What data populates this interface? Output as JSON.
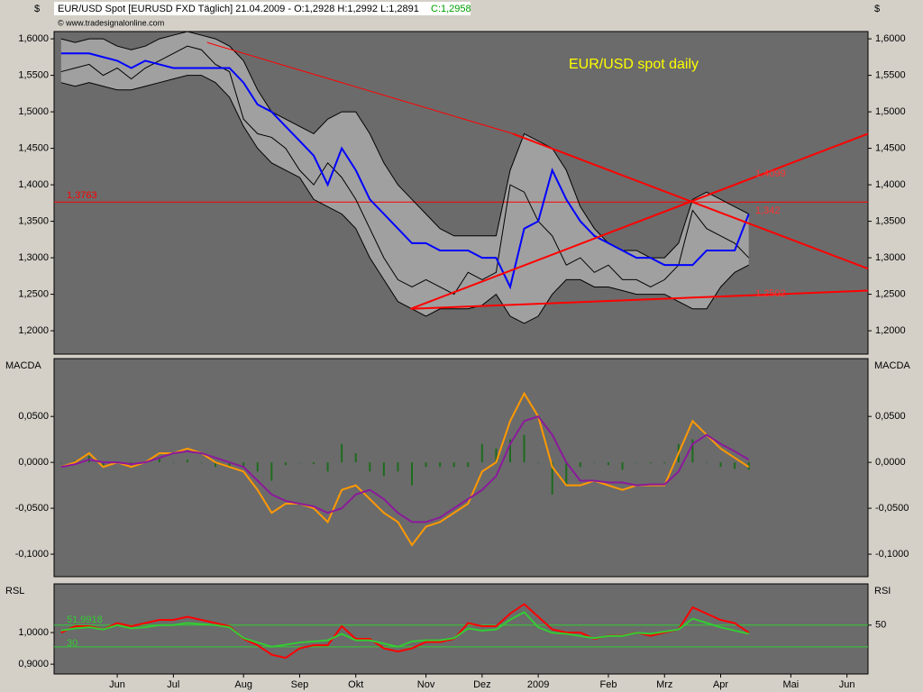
{
  "chart_data": [
    {
      "type": "line",
      "title": "EUR/USD spot daily",
      "header": "EUR/USD Spot [EURUSD FXD  Täglich] 21.04.2009 - O:1,2928 H:1,2992 L:1,2891",
      "close_label": "C:1,2958",
      "source": "© www.tradesignalonline.com",
      "ylabel": "$",
      "ylim": [
        1.168,
        1.61
      ],
      "yticks": [
        {
          "value": 1.6,
          "label": "1,6000"
        },
        {
          "value": 1.55,
          "label": "1,5500"
        },
        {
          "value": 1.5,
          "label": "1,5000"
        },
        {
          "value": 1.45,
          "label": "1,4500"
        },
        {
          "value": 1.4,
          "label": "1,4000"
        },
        {
          "value": 1.35,
          "label": "1,3500"
        },
        {
          "value": 1.3,
          "label": "1,3000"
        },
        {
          "value": 1.25,
          "label": "1,2500"
        },
        {
          "value": 1.2,
          "label": "1,2000"
        }
      ],
      "series": [
        {
          "color": "#000000",
          "values": [
            1.555,
            1.56,
            1.565,
            1.55,
            1.56,
            1.545,
            1.56,
            1.57,
            1.58,
            1.59,
            1.585,
            1.565,
            1.555,
            1.49,
            1.47,
            1.465,
            1.45,
            1.42,
            1.4,
            1.43,
            1.41,
            1.38,
            1.34,
            1.3,
            1.27,
            1.26,
            1.27,
            1.26,
            1.25,
            1.28,
            1.27,
            1.28,
            1.4,
            1.39,
            1.35,
            1.33,
            1.29,
            1.3,
            1.28,
            1.29,
            1.27,
            1.27,
            1.26,
            1.27,
            1.29,
            1.365,
            1.34,
            1.33,
            1.32,
            1.3,
            null,
            null,
            null,
            null,
            null,
            null,
            null,
            null
          ]
        },
        {
          "color": "#000000",
          "values": [
            1.6,
            1.595,
            1.6,
            1.6,
            1.59,
            1.585,
            1.59,
            1.6,
            1.605,
            1.61,
            1.605,
            1.6,
            1.59,
            1.57,
            1.53,
            1.5,
            1.49,
            1.48,
            1.47,
            1.49,
            1.5,
            1.5,
            1.47,
            1.43,
            1.4,
            1.38,
            1.36,
            1.34,
            1.33,
            1.33,
            1.33,
            1.33,
            1.42,
            1.47,
            1.46,
            1.45,
            1.42,
            1.37,
            1.34,
            1.32,
            1.31,
            1.31,
            1.3,
            1.3,
            1.32,
            1.38,
            1.39,
            1.38,
            1.37,
            1.36,
            null,
            null,
            null,
            null,
            null,
            null,
            null,
            null
          ]
        },
        {
          "color": "#000000",
          "values": [
            1.54,
            1.535,
            1.54,
            1.535,
            1.53,
            1.53,
            1.535,
            1.54,
            1.545,
            1.55,
            1.55,
            1.54,
            1.52,
            1.48,
            1.45,
            1.43,
            1.42,
            1.41,
            1.38,
            1.37,
            1.36,
            1.34,
            1.3,
            1.27,
            1.24,
            1.23,
            1.22,
            1.23,
            1.23,
            1.23,
            1.235,
            1.25,
            1.22,
            1.21,
            1.22,
            1.25,
            1.27,
            1.27,
            1.26,
            1.26,
            1.255,
            1.25,
            1.25,
            1.25,
            1.24,
            1.23,
            1.23,
            1.26,
            1.28,
            1.29,
            null,
            null,
            null,
            null,
            null,
            null,
            null,
            null
          ]
        },
        {
          "color": "#0000ff",
          "values": [
            1.58,
            1.58,
            1.58,
            1.575,
            1.57,
            1.56,
            1.57,
            1.565,
            1.56,
            1.56,
            1.56,
            1.56,
            1.56,
            1.54,
            1.51,
            1.5,
            1.48,
            1.46,
            1.44,
            1.4,
            1.45,
            1.42,
            1.38,
            1.36,
            1.34,
            1.32,
            1.32,
            1.31,
            1.31,
            1.31,
            1.3,
            1.3,
            1.26,
            1.34,
            1.35,
            1.42,
            1.38,
            1.35,
            1.33,
            1.32,
            1.31,
            1.3,
            1.3,
            1.29,
            1.29,
            1.29,
            1.31,
            1.31,
            1.31,
            1.36,
            null,
            null,
            null,
            null,
            null,
            null,
            null,
            null
          ]
        }
      ],
      "band_color": "#a0a0a0",
      "hline": {
        "value": 1.3763,
        "label": "1,3763",
        "color": "#ff0000"
      },
      "trendlines": [
        {
          "x": [
            10.4,
            32.2
          ],
          "values": [
            1.595,
            1.47
          ],
          "color": "#ff0000"
        },
        {
          "x": [
            32.2,
            57.5
          ],
          "values": [
            1.47,
            1.285
          ],
          "color": "#ff0000"
        },
        {
          "x": [
            24.9,
            57.5
          ],
          "values": [
            1.23,
            1.47
          ],
          "color": "#ff0000"
        },
        {
          "x": [
            24.9,
            57.5
          ],
          "values": [
            1.23,
            1.255
          ],
          "color": "#ff0000"
        }
      ],
      "annotations": [
        "1,4099",
        "1,342",
        "1,2502"
      ]
    },
    {
      "type": "line",
      "ylabel": "MACDA",
      "ylim": [
        -0.1245,
        0.113
      ],
      "yticks": [
        {
          "value": 0.05,
          "label": "0,0500"
        },
        {
          "value": 0,
          "label": "0,0000"
        },
        {
          "value": -0.05,
          "label": "-0,0500"
        },
        {
          "value": -0.1,
          "label": "-0,1000"
        }
      ],
      "series": [
        {
          "type": "bar",
          "color": "#1e6b1e",
          "values": [
            0,
            0.002,
            0.007,
            -0.005,
            0,
            -0.003,
            0,
            0.005,
            0,
            0.003,
            0,
            -0.005,
            -0.005,
            -0.005,
            -0.01,
            -0.02,
            -0.003,
            0,
            -0.002,
            -0.01,
            0.02,
            0.01,
            -0.01,
            -0.015,
            -0.01,
            -0.025,
            -0.005,
            -0.005,
            -0.005,
            -0.005,
            0.02,
            0.015,
            0.025,
            0.03,
            0,
            -0.035,
            -0.025,
            -0.005,
            0,
            -0.003,
            -0.008,
            0,
            -0.001,
            -0.001,
            0.02,
            0.025,
            0,
            -0.005,
            -0.007,
            -0.008,
            null,
            null,
            null,
            null,
            null,
            null,
            null,
            null
          ]
        },
        {
          "color": "#ff9900",
          "values": [
            -0.005,
            0.0,
            0.01,
            -0.005,
            0.0,
            -0.005,
            0.0,
            0.01,
            0.01,
            0.015,
            0.01,
            0.0,
            -0.005,
            -0.01,
            -0.03,
            -0.055,
            -0.045,
            -0.045,
            -0.05,
            -0.065,
            -0.03,
            -0.025,
            -0.04,
            -0.055,
            -0.065,
            -0.09,
            -0.07,
            -0.065,
            -0.055,
            -0.045,
            -0.01,
            0.0,
            0.045,
            0.075,
            0.05,
            -0.005,
            -0.025,
            -0.025,
            -0.02,
            -0.025,
            -0.03,
            -0.025,
            -0.025,
            -0.025,
            0.01,
            0.045,
            0.03,
            0.015,
            0.005,
            -0.005,
            null,
            null,
            null,
            null,
            null,
            null,
            null,
            null
          ]
        },
        {
          "color": "#8b1a9b",
          "values": [
            -0.005,
            -0.002,
            0.003,
            0.0,
            0.0,
            -0.002,
            0.0,
            0.005,
            0.01,
            0.012,
            0.01,
            0.005,
            0.0,
            -0.005,
            -0.02,
            -0.035,
            -0.042,
            -0.045,
            -0.048,
            -0.055,
            -0.05,
            -0.035,
            -0.03,
            -0.04,
            -0.055,
            -0.065,
            -0.065,
            -0.06,
            -0.05,
            -0.04,
            -0.03,
            -0.015,
            0.02,
            0.045,
            0.05,
            0.03,
            0.0,
            -0.02,
            -0.02,
            -0.022,
            -0.022,
            -0.025,
            -0.024,
            -0.024,
            -0.01,
            0.02,
            0.03,
            0.02,
            0.012,
            0.003,
            null,
            null,
            null,
            null,
            null,
            null,
            null,
            null
          ]
        }
      ]
    },
    {
      "type": "line",
      "ylabel": "RSL",
      "y2label": "RSI",
      "categories": [
        null,
        null,
        null,
        null,
        "Jun",
        null,
        null,
        null,
        "Jul",
        null,
        null,
        null,
        null,
        "Aug",
        null,
        null,
        null,
        "Sep",
        null,
        null,
        null,
        "Okt",
        null,
        null,
        null,
        null,
        "Nov",
        null,
        null,
        null,
        "Dez",
        null,
        null,
        null,
        "2009",
        null,
        null,
        null,
        null,
        "Feb",
        null,
        null,
        null,
        "Mrz",
        null,
        null,
        null,
        "Apr",
        null,
        null,
        null,
        null,
        "Mai",
        null,
        null,
        null,
        "Jun",
        null
      ],
      "ylim": [
        0.869,
        1.154
      ],
      "yticks": [
        {
          "value": 1.0,
          "label": "1,0000"
        },
        {
          "value": 0.9,
          "label": "0,9000"
        }
      ],
      "y2lim": [
        5,
        88
      ],
      "y2ticks": [
        50
      ],
      "levels": [
        50,
        30
      ],
      "level_color": "#33cc33",
      "annotations": [
        "51,9918"
      ],
      "series": [
        {
          "color": "#ff0000",
          "values": [
            1.0,
            1.02,
            1.02,
            1.01,
            1.03,
            1.02,
            1.03,
            1.04,
            1.04,
            1.05,
            1.04,
            1.03,
            1.02,
            0.98,
            0.96,
            0.93,
            0.92,
            0.95,
            0.96,
            0.96,
            1.02,
            0.98,
            0.98,
            0.95,
            0.94,
            0.95,
            0.97,
            0.97,
            0.98,
            1.03,
            1.02,
            1.02,
            1.06,
            1.09,
            1.05,
            1.01,
            1.0,
            1.0,
            0.98,
            0.99,
            0.99,
            1.0,
            0.99,
            1.0,
            1.01,
            1.08,
            1.06,
            1.04,
            1.03,
            1.0,
            null,
            null,
            null,
            null,
            null,
            null,
            null,
            null
          ]
        },
        {
          "color": "#33cc33",
          "axis": "y2",
          "values": [
            45,
            47,
            48,
            46,
            50,
            47,
            48,
            50,
            50,
            52,
            51,
            50,
            48,
            38,
            34,
            30,
            32,
            34,
            35,
            36,
            42,
            36,
            36,
            33,
            30,
            35,
            36,
            36,
            38,
            47,
            45,
            46,
            55,
            62,
            48,
            43,
            42,
            40,
            38,
            40,
            40,
            43,
            42,
            44,
            46,
            56,
            52,
            48,
            45,
            42,
            null,
            null,
            null,
            null,
            null,
            null,
            null,
            null
          ]
        }
      ]
    }
  ]
}
